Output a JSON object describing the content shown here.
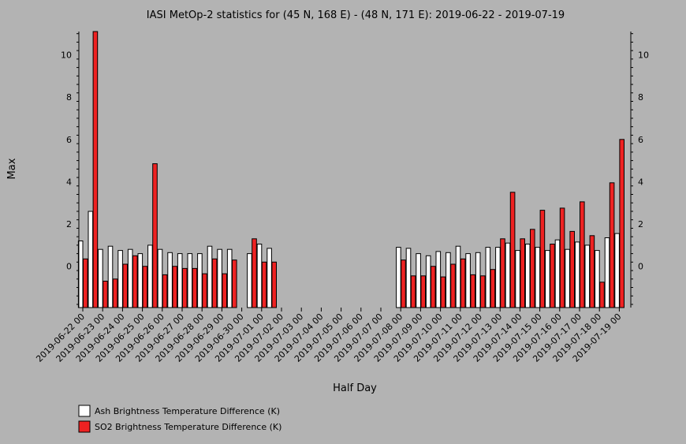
{
  "chart_data": {
    "type": "bar",
    "title": "IASI MetOp-2 statistics for (45 N, 168 E) - (48 N, 171 E): 2019-06-22 - 2019-07-19",
    "xlabel": "Half Day",
    "ylabel": "Max",
    "ylim": [
      -1.95,
      11.1
    ],
    "yticks": [
      0,
      2,
      4,
      6,
      8,
      10
    ],
    "grid": false,
    "legend_position": "bottom-left",
    "categories": [
      "2019-06-22 00",
      "2019-06-22 12",
      "2019-06-23 00",
      "2019-06-23 12",
      "2019-06-24 00",
      "2019-06-24 12",
      "2019-06-25 00",
      "2019-06-25 12",
      "2019-06-26 00",
      "2019-06-26 12",
      "2019-06-27 00",
      "2019-06-27 12",
      "2019-06-28 00",
      "2019-06-28 12",
      "2019-06-29 00",
      "2019-06-29 12",
      "2019-06-30 00",
      "2019-06-30 12",
      "2019-07-01 00",
      "2019-07-01 12",
      "2019-07-02 00",
      "2019-07-02 12",
      "2019-07-03 00",
      "2019-07-03 12",
      "2019-07-04 00",
      "2019-07-04 12",
      "2019-07-05 00",
      "2019-07-05 12",
      "2019-07-06 00",
      "2019-07-06 12",
      "2019-07-07 00",
      "2019-07-07 12",
      "2019-07-08 00",
      "2019-07-08 12",
      "2019-07-09 00",
      "2019-07-09 12",
      "2019-07-10 00",
      "2019-07-10 12",
      "2019-07-11 00",
      "2019-07-11 12",
      "2019-07-12 00",
      "2019-07-12 12",
      "2019-07-13 00",
      "2019-07-13 12",
      "2019-07-14 00",
      "2019-07-14 12",
      "2019-07-15 00",
      "2019-07-15 12",
      "2019-07-16 00",
      "2019-07-16 12",
      "2019-07-17 00",
      "2019-07-17 12",
      "2019-07-18 00",
      "2019-07-18 12",
      "2019-07-19 00"
    ],
    "tick_labels": [
      "2019-06-22 00",
      "2019-06-23 00",
      "2019-06-24 00",
      "2019-06-25 00",
      "2019-06-26 00",
      "2019-06-27 00",
      "2019-06-28 00",
      "2019-06-29 00",
      "2019-06-30 00",
      "2019-07-01 00",
      "2019-07-02 00",
      "2019-07-03 00",
      "2019-07-04 00",
      "2019-07-05 00",
      "2019-07-06 00",
      "2019-07-07 00",
      "2019-07-08 00",
      "2019-07-09 00",
      "2019-07-10 00",
      "2019-07-11 00",
      "2019-07-12 00",
      "2019-07-13 00",
      "2019-07-14 00",
      "2019-07-15 00",
      "2019-07-16 00",
      "2019-07-17 00",
      "2019-07-18 00",
      "2019-07-19 00"
    ],
    "series": [
      {
        "name": "Ash Brightness Temperature Difference (K)",
        "color": "#ffffff",
        "values": [
          1.2,
          2.6,
          0.8,
          0.95,
          0.75,
          0.8,
          0.6,
          1.0,
          0.8,
          0.65,
          0.6,
          0.6,
          0.6,
          0.95,
          0.8,
          0.8,
          null,
          0.6,
          1.05,
          0.85,
          null,
          null,
          null,
          null,
          null,
          null,
          null,
          null,
          null,
          null,
          null,
          null,
          0.9,
          0.85,
          0.6,
          0.5,
          0.7,
          0.65,
          0.95,
          0.6,
          0.65,
          0.9,
          0.9,
          1.1,
          0.75,
          1.05,
          0.9,
          0.75,
          1.25,
          0.8,
          1.15,
          1.0,
          0.75,
          1.35,
          1.55
        ]
      },
      {
        "name": "SO2 Brightness Temperature Difference (K)",
        "color": "#ee2222",
        "values": [
          0.35,
          11.1,
          -0.7,
          -0.6,
          0.1,
          0.5,
          0.0,
          4.85,
          -0.4,
          0.0,
          -0.1,
          -0.1,
          -0.35,
          0.35,
          -0.35,
          0.3,
          null,
          1.3,
          0.2,
          0.2,
          null,
          null,
          null,
          null,
          null,
          null,
          null,
          null,
          null,
          null,
          null,
          null,
          0.3,
          -0.45,
          -0.45,
          0.0,
          -0.5,
          0.1,
          0.35,
          -0.4,
          -0.45,
          -0.15,
          1.3,
          3.5,
          1.3,
          1.75,
          2.65,
          1.05,
          2.75,
          1.65,
          3.05,
          1.45,
          -0.75,
          3.95,
          6.0
        ]
      }
    ]
  }
}
